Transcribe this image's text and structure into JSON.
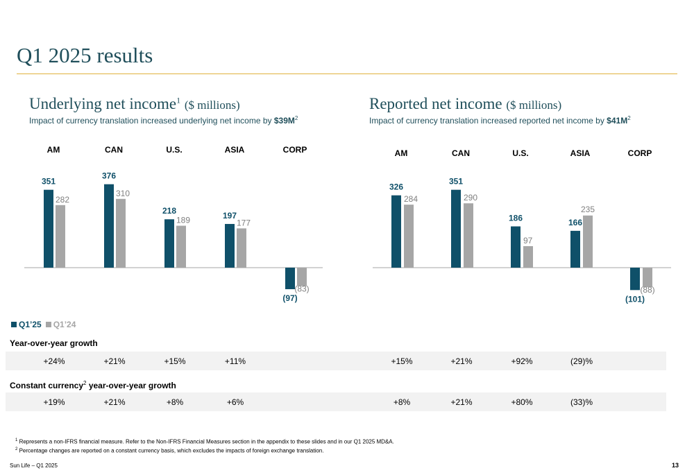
{
  "page": {
    "title": "Q1 2025 results",
    "brand": "Sun Life – Q1 2025",
    "page_number": "13"
  },
  "colors": {
    "q1_25": "#0f5069",
    "q1_24": "#a6a6a6",
    "title": "#1f4e5a",
    "rule": "#e0b23c"
  },
  "left_panel": {
    "title": "Underlying net income",
    "title_sup": "1",
    "unit": "($ millions)",
    "subtitle": "Impact of currency translation increased underlying net income by ",
    "subtitle_value": "$39M",
    "subtitle_sup": "2"
  },
  "right_panel": {
    "title": "Reported net income",
    "unit": "($ millions)",
    "subtitle": "Impact of currency translation increased reported net income by ",
    "subtitle_value": "$41M",
    "subtitle_sup": "2"
  },
  "legend": {
    "q1_25": "Q1’25",
    "q1_24": "Q1’24"
  },
  "chart_data": [
    {
      "type": "bar",
      "categories": [
        "AM",
        "CAN",
        "U.S.",
        "ASIA",
        "CORP"
      ],
      "series": [
        {
          "name": "Q1’25",
          "values": [
            351,
            376,
            218,
            197,
            -97
          ],
          "labels": [
            "351",
            "376",
            "218",
            "197",
            "(97)"
          ]
        },
        {
          "name": "Q1’24",
          "values": [
            282,
            310,
            189,
            177,
            -83
          ],
          "labels": [
            "282",
            "310",
            "189",
            "177",
            "(83)"
          ]
        }
      ]
    },
    {
      "type": "bar",
      "categories": [
        "AM",
        "CAN",
        "U.S.",
        "ASIA",
        "CORP"
      ],
      "series": [
        {
          "name": "Q1’25",
          "values": [
            326,
            351,
            186,
            166,
            -101
          ],
          "labels": [
            "326",
            "351",
            "186",
            "166",
            "(101)"
          ]
        },
        {
          "name": "Q1’24",
          "values": [
            284,
            290,
            97,
            235,
            -88
          ],
          "labels": [
            "284",
            "290",
            "97",
            "235",
            "(88)"
          ]
        }
      ]
    }
  ],
  "growth": {
    "yoy_label": "Year-over-year growth",
    "cc_label": "Constant currency",
    "cc_sup": "2",
    "cc_label_rest": " year-over-year growth",
    "underlying_yoy": [
      "+24%",
      "+21%",
      "+15%",
      "+11%"
    ],
    "reported_yoy": [
      "+15%",
      "+21%",
      "+92%",
      "(29)%"
    ],
    "underlying_cc": [
      "+19%",
      "+21%",
      "+8%",
      "+6%"
    ],
    "reported_cc": [
      "+8%",
      "+21%",
      "+80%",
      "(33)%"
    ]
  },
  "footnotes": {
    "note1_mark": "1",
    "note1": " Represents a non-IFRS financial measure. Refer to the Non-IFRS Financial Measures section in the appendix to these slides and in our Q1 2025 MD&A.",
    "note2_mark": "2",
    "note2": " Percentage changes are reported on a constant currency basis, which excludes the impacts of foreign exchange translation."
  }
}
